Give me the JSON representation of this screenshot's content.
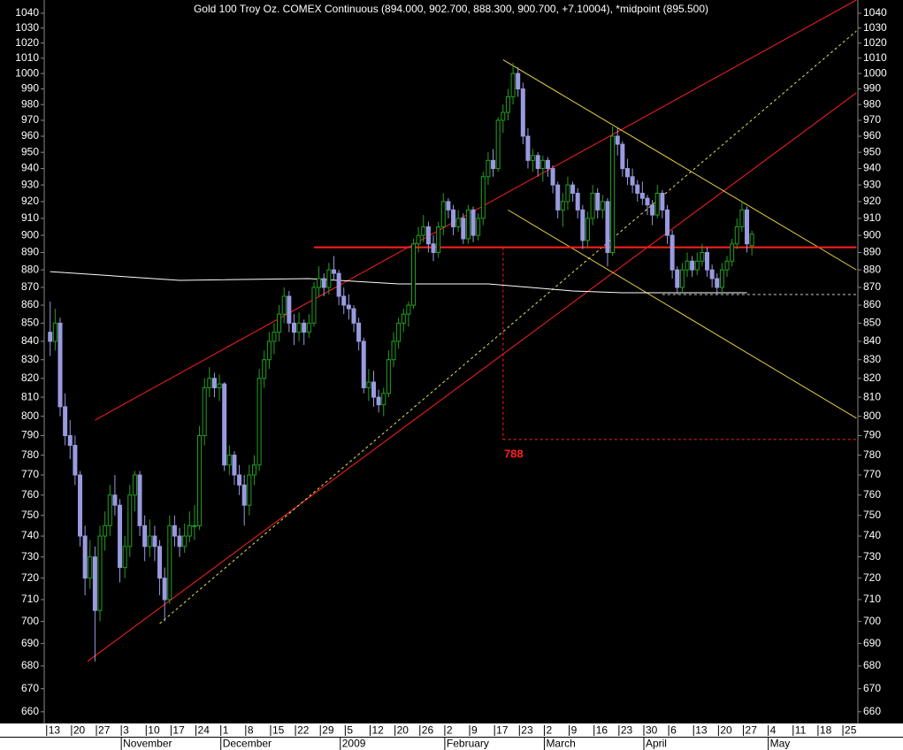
{
  "chart_data": {
    "type": "candlestick",
    "title": "Gold 100 Troy Oz. COMEX Continuous (894.000, 902.700, 888.300, 900.700, +7.10004), *midpoint (895.500)",
    "log_y": true,
    "ylim": [
      655,
      1049
    ],
    "yticks": [
      660,
      670,
      680,
      690,
      700,
      710,
      720,
      730,
      740,
      750,
      760,
      770,
      780,
      790,
      800,
      810,
      820,
      830,
      840,
      850,
      860,
      870,
      880,
      890,
      900,
      910,
      920,
      930,
      940,
      950,
      960,
      970,
      980,
      990,
      1000,
      1010,
      1020,
      1030,
      1040
    ],
    "xlim": [
      -1.2,
      162.3
    ],
    "xticks": [
      {
        "value": 0,
        "label": "13"
      },
      {
        "value": 5,
        "label": "20"
      },
      {
        "value": 10,
        "label": "27"
      },
      {
        "value": 15,
        "label": "3"
      },
      {
        "value": 20,
        "label": "10"
      },
      {
        "value": 25,
        "label": "17"
      },
      {
        "value": 30,
        "label": "24"
      },
      {
        "value": 35,
        "label": "1"
      },
      {
        "value": 40,
        "label": "8"
      },
      {
        "value": 45,
        "label": "15"
      },
      {
        "value": 50,
        "label": "22"
      },
      {
        "value": 55,
        "label": "29"
      },
      {
        "value": 60,
        "label": "5"
      },
      {
        "value": 65,
        "label": "12"
      },
      {
        "value": 70,
        "label": "20"
      },
      {
        "value": 75,
        "label": "26"
      },
      {
        "value": 80,
        "label": "2"
      },
      {
        "value": 85,
        "label": "9"
      },
      {
        "value": 90,
        "label": "17"
      },
      {
        "value": 95,
        "label": "23"
      },
      {
        "value": 100,
        "label": "2"
      },
      {
        "value": 105,
        "label": "9"
      },
      {
        "value": 110,
        "label": "16"
      },
      {
        "value": 115,
        "label": "23"
      },
      {
        "value": 120,
        "label": "30"
      },
      {
        "value": 125,
        "label": "6"
      },
      {
        "value": 130,
        "label": "13"
      },
      {
        "value": 135,
        "label": "20"
      },
      {
        "value": 140,
        "label": "27"
      },
      {
        "value": 145,
        "label": "4"
      },
      {
        "value": 150,
        "label": "11"
      },
      {
        "value": 155,
        "label": "18"
      },
      {
        "value": 160,
        "label": "25"
      }
    ],
    "months": [
      {
        "value": 15,
        "label": "November"
      },
      {
        "value": 35,
        "label": "December"
      },
      {
        "value": 59,
        "label": "2009"
      },
      {
        "value": 80,
        "label": "February"
      },
      {
        "value": 100,
        "label": "March"
      },
      {
        "value": 120,
        "label": "April"
      },
      {
        "value": 145,
        "label": "May"
      }
    ],
    "up_color": "#22a022",
    "down_color": "#9a9ae0",
    "ohlc": [
      [
        845,
        862,
        832,
        840
      ],
      [
        840,
        858,
        835,
        850
      ],
      [
        850,
        853,
        800,
        805
      ],
      [
        805,
        812,
        785,
        790
      ],
      [
        790,
        798,
        778,
        785
      ],
      [
        785,
        790,
        765,
        770
      ],
      [
        770,
        772,
        735,
        740
      ],
      [
        740,
        745,
        712,
        720
      ],
      [
        720,
        738,
        715,
        730
      ],
      [
        730,
        735,
        682,
        705
      ],
      [
        705,
        745,
        700,
        740
      ],
      [
        740,
        752,
        733,
        745
      ],
      [
        745,
        765,
        740,
        760
      ],
      [
        760,
        770,
        750,
        755
      ],
      [
        755,
        758,
        718,
        725
      ],
      [
        725,
        740,
        720,
        735
      ],
      [
        735,
        765,
        730,
        760
      ],
      [
        760,
        772,
        752,
        770
      ],
      [
        770,
        772,
        740,
        745
      ],
      [
        745,
        750,
        728,
        735
      ],
      [
        735,
        748,
        730,
        740
      ],
      [
        740,
        745,
        728,
        735
      ],
      [
        735,
        738,
        712,
        720
      ],
      [
        720,
        725,
        700,
        710
      ],
      [
        710,
        750,
        708,
        745
      ],
      [
        745,
        750,
        735,
        740
      ],
      [
        740,
        744,
        730,
        735
      ],
      [
        735,
        746,
        732,
        740
      ],
      [
        740,
        752,
        737,
        745
      ],
      [
        745,
        755,
        738,
        745
      ],
      [
        745,
        795,
        743,
        790
      ],
      [
        790,
        820,
        785,
        815
      ],
      [
        815,
        826,
        810,
        820
      ],
      [
        820,
        823,
        810,
        815
      ],
      [
        815,
        822,
        808,
        817
      ],
      [
        817,
        818,
        772,
        775
      ],
      [
        775,
        785,
        770,
        780
      ],
      [
        780,
        782,
        765,
        770
      ],
      [
        770,
        775,
        760,
        765
      ],
      [
        765,
        770,
        745,
        755
      ],
      [
        755,
        775,
        750,
        770
      ],
      [
        770,
        780,
        765,
        775
      ],
      [
        775,
        825,
        772,
        820
      ],
      [
        820,
        835,
        815,
        830
      ],
      [
        830,
        845,
        825,
        840
      ],
      [
        840,
        850,
        833,
        845
      ],
      [
        845,
        860,
        840,
        855
      ],
      [
        855,
        870,
        850,
        865
      ],
      [
        865,
        868,
        845,
        850
      ],
      [
        850,
        855,
        838,
        845
      ],
      [
        845,
        856,
        840,
        850
      ],
      [
        850,
        852,
        838,
        845
      ],
      [
        845,
        855,
        842,
        850
      ],
      [
        850,
        873,
        848,
        870
      ],
      [
        870,
        882,
        865,
        875
      ],
      [
        875,
        878,
        865,
        870
      ],
      [
        870,
        884,
        866,
        880
      ],
      [
        880,
        888,
        874,
        878
      ],
      [
        878,
        880,
        860,
        865
      ],
      [
        865,
        870,
        855,
        860
      ],
      [
        860,
        866,
        852,
        858
      ],
      [
        858,
        860,
        845,
        850
      ],
      [
        850,
        853,
        835,
        840
      ],
      [
        840,
        842,
        812,
        815
      ],
      [
        815,
        825,
        808,
        818
      ],
      [
        818,
        824,
        805,
        810
      ],
      [
        810,
        814,
        802,
        806
      ],
      [
        806,
        815,
        800,
        812
      ],
      [
        812,
        835,
        810,
        830
      ],
      [
        830,
        845,
        826,
        840
      ],
      [
        840,
        853,
        836,
        850
      ],
      [
        850,
        858,
        845,
        855
      ],
      [
        855,
        862,
        848,
        860
      ],
      [
        860,
        898,
        858,
        895
      ],
      [
        895,
        905,
        890,
        900
      ],
      [
        900,
        912,
        896,
        905
      ],
      [
        905,
        908,
        890,
        895
      ],
      [
        895,
        900,
        885,
        890
      ],
      [
        890,
        908,
        887,
        905
      ],
      [
        905,
        925,
        900,
        920
      ],
      [
        920,
        922,
        910,
        915
      ],
      [
        915,
        918,
        900,
        905
      ],
      [
        905,
        915,
        902,
        910
      ],
      [
        910,
        913,
        895,
        898
      ],
      [
        898,
        918,
        895,
        915
      ],
      [
        915,
        917,
        896,
        900
      ],
      [
        900,
        913,
        897,
        910
      ],
      [
        910,
        938,
        906,
        935
      ],
      [
        935,
        950,
        930,
        945
      ],
      [
        945,
        952,
        935,
        940
      ],
      [
        940,
        972,
        938,
        970
      ],
      [
        970,
        980,
        962,
        975
      ],
      [
        975,
        990,
        970,
        985
      ],
      [
        985,
        1007,
        980,
        1000
      ],
      [
        1000,
        1004,
        985,
        990
      ],
      [
        990,
        994,
        955,
        960
      ],
      [
        960,
        965,
        940,
        945
      ],
      [
        945,
        952,
        938,
        948
      ],
      [
        948,
        950,
        935,
        940
      ],
      [
        940,
        948,
        932,
        945
      ],
      [
        945,
        947,
        935,
        940
      ],
      [
        940,
        942,
        925,
        930
      ],
      [
        930,
        932,
        910,
        915
      ],
      [
        915,
        925,
        905,
        920
      ],
      [
        920,
        935,
        915,
        930
      ],
      [
        930,
        932,
        920,
        925
      ],
      [
        925,
        928,
        910,
        915
      ],
      [
        915,
        918,
        892,
        897
      ],
      [
        897,
        914,
        893,
        910
      ],
      [
        910,
        930,
        906,
        925
      ],
      [
        925,
        928,
        910,
        915
      ],
      [
        915,
        924,
        910,
        920
      ],
      [
        920,
        922,
        882,
        890
      ],
      [
        890,
        966,
        888,
        960
      ],
      [
        960,
        965,
        948,
        955
      ],
      [
        955,
        957,
        935,
        940
      ],
      [
        940,
        946,
        930,
        935
      ],
      [
        935,
        940,
        925,
        930
      ],
      [
        930,
        933,
        920,
        925
      ],
      [
        925,
        932,
        918,
        922
      ],
      [
        922,
        924,
        912,
        918
      ],
      [
        918,
        921,
        906,
        912
      ],
      [
        912,
        930,
        910,
        925
      ],
      [
        925,
        927,
        910,
        915
      ],
      [
        915,
        918,
        895,
        900
      ],
      [
        900,
        903,
        875,
        880
      ],
      [
        880,
        882,
        866,
        870
      ],
      [
        870,
        884,
        867,
        880
      ],
      [
        880,
        890,
        876,
        885
      ],
      [
        885,
        888,
        876,
        880
      ],
      [
        880,
        890,
        877,
        885
      ],
      [
        885,
        895,
        882,
        890
      ],
      [
        890,
        893,
        876,
        880
      ],
      [
        880,
        883,
        870,
        875
      ],
      [
        875,
        878,
        866,
        870
      ],
      [
        870,
        884,
        867,
        880
      ],
      [
        880,
        888,
        876,
        885
      ],
      [
        885,
        898,
        882,
        895
      ],
      [
        895,
        910,
        892,
        905
      ],
      [
        905,
        920,
        902,
        915
      ],
      [
        915,
        917,
        890,
        895
      ],
      [
        894,
        902.7,
        888.3,
        900.7
      ]
    ],
    "lines": [
      {
        "color": "#ff2020",
        "points": [
          [
            9,
            798
          ],
          [
            162,
            1049
          ]
        ]
      },
      {
        "color": "#ff2020",
        "points": [
          [
            7.5,
            682
          ],
          [
            162,
            987.5
          ]
        ]
      },
      {
        "color": "#e8e060",
        "dash": true,
        "points": [
          [
            22,
            699
          ],
          [
            162,
            1028
          ]
        ]
      },
      {
        "color": "#e8d040",
        "points": [
          [
            91,
            1009
          ],
          [
            162,
            880
          ]
        ]
      },
      {
        "color": "#e8d040",
        "points": [
          [
            92,
            915
          ],
          [
            162,
            799
          ]
        ]
      },
      {
        "color": "#ff2020",
        "width": 2,
        "points": [
          [
            53,
            893
          ],
          [
            162,
            893
          ]
        ]
      },
      {
        "color": "#ff2020",
        "dash": true,
        "points": [
          [
            91,
            893
          ],
          [
            91,
            788
          ]
        ]
      },
      {
        "color": "#ff2020",
        "dash": true,
        "label": "788",
        "points": [
          [
            91,
            788
          ],
          [
            162,
            788
          ]
        ]
      },
      {
        "color": "#cccccc",
        "dash": true,
        "points": [
          [
            123,
            866
          ],
          [
            162,
            866
          ]
        ]
      },
      {
        "color": "#ffffff",
        "points": [
          [
            124,
            867
          ],
          [
            140,
            867
          ]
        ]
      },
      {
        "color": "#ffffff",
        "points": [
          [
            0,
            879
          ],
          [
            26,
            874
          ],
          [
            52,
            875
          ],
          [
            70,
            872
          ],
          [
            88,
            872
          ],
          [
            105,
            868
          ],
          [
            115,
            867
          ],
          [
            140,
            867
          ]
        ]
      }
    ]
  }
}
